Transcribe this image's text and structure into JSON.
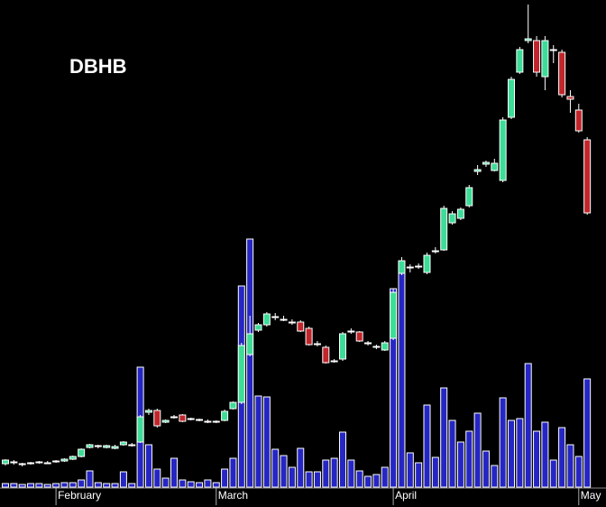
{
  "chart_data": {
    "type": "candlestick",
    "title": "DBHB",
    "ylim": [
      0,
      540
    ],
    "y2lim": [
      0,
      540
    ],
    "x_count": 70,
    "xticks": [
      {
        "value": 6,
        "label": "February"
      },
      {
        "value": 25,
        "label": "March"
      },
      {
        "value": 46,
        "label": "April"
      },
      {
        "value": 68,
        "label": "May"
      }
    ],
    "up_color": "#3ddc97",
    "down_color": "#c0262b",
    "volume_color": "#2626c4",
    "ohlc": [
      [
        26,
        31,
        24,
        30
      ],
      [
        27,
        30,
        25,
        28
      ],
      [
        25,
        27,
        23,
        26
      ],
      [
        26,
        28,
        25,
        27
      ],
      [
        27,
        29,
        26,
        28
      ],
      [
        27,
        29,
        26,
        27
      ],
      [
        28,
        30,
        27,
        29
      ],
      [
        29,
        32,
        28,
        31
      ],
      [
        31,
        35,
        30,
        34
      ],
      [
        34,
        43,
        33,
        42
      ],
      [
        44,
        48,
        43,
        47
      ],
      [
        45,
        47,
        43,
        46
      ],
      [
        44,
        47,
        43,
        46
      ],
      [
        43,
        47,
        42,
        45
      ],
      [
        47,
        51,
        46,
        50
      ],
      [
        46,
        49,
        45,
        47
      ],
      [
        50,
        80,
        49,
        78
      ],
      [
        83,
        87,
        80,
        85
      ],
      [
        85,
        87,
        66,
        68
      ],
      [
        72,
        75,
        71,
        74
      ],
      [
        77,
        80,
        76,
        78
      ],
      [
        80,
        81,
        72,
        73
      ],
      [
        75,
        77,
        74,
        76
      ],
      [
        74,
        76,
        73,
        75
      ],
      [
        72,
        75,
        71,
        73
      ],
      [
        72,
        74,
        71,
        73
      ],
      [
        74,
        86,
        73,
        84
      ],
      [
        87,
        95,
        86,
        94
      ],
      [
        94,
        160,
        92,
        157
      ],
      [
        147,
        190,
        145,
        170
      ],
      [
        174,
        182,
        172,
        180
      ],
      [
        180,
        194,
        178,
        192
      ],
      [
        189,
        193,
        185,
        189
      ],
      [
        186,
        190,
        184,
        186
      ],
      [
        183,
        186,
        180,
        183
      ],
      [
        183,
        185,
        172,
        173
      ],
      [
        176,
        178,
        157,
        158
      ],
      [
        159,
        162,
        156,
        159
      ],
      [
        155,
        157,
        137,
        138
      ],
      [
        140,
        142,
        138,
        140
      ],
      [
        142,
        172,
        140,
        170
      ],
      [
        173,
        176,
        170,
        173
      ],
      [
        172,
        173,
        161,
        162
      ],
      [
        160,
        162,
        157,
        160
      ],
      [
        156,
        158,
        153,
        156
      ],
      [
        152,
        162,
        151,
        160
      ],
      [
        165,
        220,
        163,
        216
      ],
      [
        237,
        255,
        235,
        251
      ],
      [
        244,
        247,
        238,
        244
      ],
      [
        245,
        248,
        242,
        245
      ],
      [
        238,
        260,
        236,
        257
      ],
      [
        262,
        266,
        259,
        262
      ],
      [
        263,
        312,
        262,
        309
      ],
      [
        293,
        306,
        291,
        303
      ],
      [
        298,
        310,
        296,
        308
      ],
      [
        312,
        335,
        310,
        332
      ],
      [
        350,
        357,
        346,
        352
      ],
      [
        358,
        362,
        355,
        360
      ],
      [
        351,
        364,
        350,
        359
      ],
      [
        340,
        410,
        338,
        407
      ],
      [
        410,
        455,
        408,
        452
      ],
      [
        460,
        488,
        458,
        485
      ],
      [
        495,
        535,
        492,
        497
      ],
      [
        495,
        500,
        455,
        460
      ],
      [
        455,
        500,
        440,
        495
      ],
      [
        485,
        490,
        470,
        485
      ],
      [
        482,
        485,
        432,
        435
      ],
      [
        433,
        440,
        415,
        430
      ],
      [
        418,
        425,
        393,
        395
      ],
      [
        385,
        388,
        302,
        304
      ]
    ],
    "volume": [
      4,
      4,
      3,
      4,
      4,
      3,
      4,
      5,
      5,
      8,
      18,
      5,
      4,
      4,
      17,
      4,
      133,
      47,
      20,
      10,
      32,
      8,
      6,
      5,
      8,
      5,
      20,
      32,
      223,
      275,
      101,
      100,
      42,
      35,
      22,
      43,
      17,
      17,
      30,
      32,
      61,
      30,
      18,
      12,
      14,
      22,
      220,
      250,
      38,
      27,
      91,
      33,
      110,
      74,
      50,
      62,
      82,
      40,
      24,
      99,
      74,
      76,
      137,
      62,
      72,
      30,
      66,
      47,
      34,
      120
    ]
  }
}
